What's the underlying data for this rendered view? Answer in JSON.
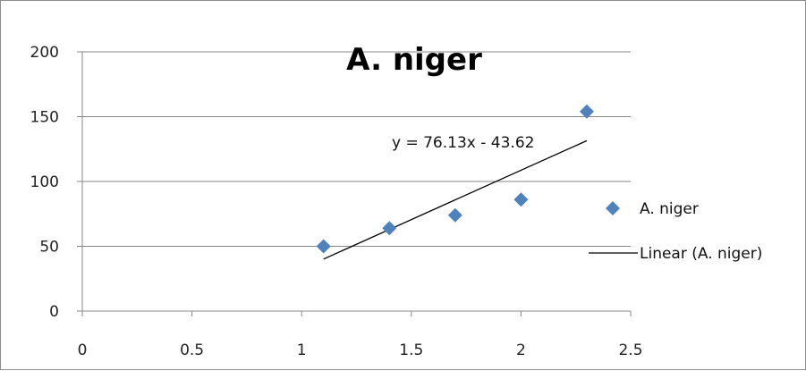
{
  "chart_data": {
    "type": "scatter",
    "title": "A. niger",
    "xlabel": "",
    "ylabel": "",
    "xlim": [
      0,
      2.5
    ],
    "ylim": [
      0,
      200
    ],
    "x_ticks": [
      0,
      0.5,
      1,
      1.5,
      2,
      2.5
    ],
    "x_tick_labels": [
      "0",
      "0.5",
      "1",
      "1.5",
      "2",
      "2.5"
    ],
    "y_ticks": [
      0,
      50,
      100,
      150,
      200
    ],
    "y_tick_labels": [
      "0",
      "50",
      "100",
      "150",
      "200"
    ],
    "grid": "horizontal",
    "series": [
      {
        "name": "A. niger",
        "marker": "diamond",
        "color": "#4f81bd",
        "x": [
          1.1,
          1.4,
          1.7,
          2.0,
          2.3
        ],
        "y": [
          50,
          64,
          74,
          86,
          154
        ]
      }
    ],
    "trendline": {
      "name": "Linear (A. niger)",
      "slope": 76.13,
      "intercept": -43.62,
      "x_range": [
        1.1,
        2.3
      ],
      "equation_label": "y = 76.13x - 43.62",
      "color": "#000000"
    },
    "legend_position": "right"
  }
}
